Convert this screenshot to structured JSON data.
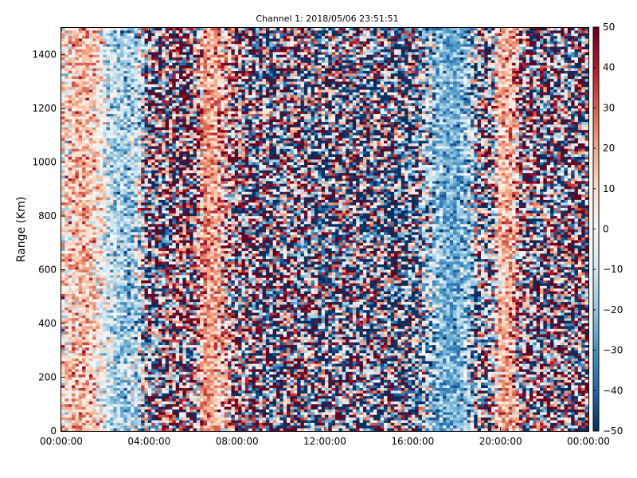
{
  "chart_data": {
    "type": "heatmap",
    "title": "Channel 1: 2018/05/06 23:51:51",
    "xlabel": "",
    "ylabel": "Range (Km)",
    "x_tick_labels": [
      "00:00:00",
      "04:00:00",
      "08:00:00",
      "12:00:00",
      "16:00:00",
      "20:00:00",
      "00:00:00"
    ],
    "x_range_hours": [
      0,
      24
    ],
    "y_ticks": [
      0,
      200,
      400,
      600,
      800,
      1000,
      1200,
      1400
    ],
    "ylim": [
      0,
      1500
    ],
    "colorbar": {
      "colormap": "RdBu_r",
      "vmin": -50,
      "vmax": 50,
      "ticks": [
        -50,
        -40,
        -30,
        -20,
        -10,
        0,
        10,
        20,
        30,
        40,
        50
      ],
      "tick_labels": [
        "−50",
        "−40",
        "−30",
        "−20",
        "−10",
        "0",
        "10",
        "20",
        "30",
        "40",
        "50"
      ],
      "colors": [
        "#053061",
        "#2166ac",
        "#4393c3",
        "#92c5de",
        "#d1e5f0",
        "#f7f7f7",
        "#fddbc7",
        "#f4a582",
        "#d6604d",
        "#b2182b",
        "#67001f"
      ]
    },
    "time_bins": 152,
    "range_bins": 150,
    "column_profile_hours": [
      0,
      0.5,
      1,
      1.5,
      2,
      2.5,
      3,
      3.5,
      4,
      4.5,
      5,
      5.5,
      6,
      6.5,
      7,
      7.5,
      8,
      8.5,
      9,
      9.5,
      10,
      10.5,
      11,
      11.5,
      12,
      12.5,
      13,
      13.5,
      14,
      14.5,
      15,
      15.5,
      16,
      16.5,
      17,
      17.5,
      18,
      18.5,
      19,
      19.5,
      20,
      20.5,
      21,
      21.5,
      22,
      22.5,
      23,
      23.5,
      24
    ],
    "column_profile_mean": [
      5,
      12,
      18,
      8,
      -5,
      -15,
      -20,
      -10,
      -5,
      0,
      5,
      10,
      0,
      25,
      20,
      15,
      5,
      0,
      -10,
      -15,
      -5,
      0,
      -10,
      -15,
      -20,
      -10,
      -5,
      -10,
      -15,
      -10,
      -20,
      -25,
      -20,
      -15,
      -20,
      -25,
      -25,
      -20,
      -10,
      -5,
      15,
      20,
      5,
      0,
      0,
      0,
      0,
      0,
      0
    ],
    "column_profile_spread": [
      15,
      12,
      10,
      12,
      12,
      10,
      12,
      15,
      40,
      45,
      45,
      45,
      45,
      10,
      10,
      25,
      40,
      45,
      45,
      45,
      45,
      45,
      45,
      45,
      45,
      45,
      45,
      45,
      45,
      45,
      45,
      45,
      45,
      30,
      15,
      8,
      8,
      15,
      40,
      40,
      10,
      10,
      40,
      45,
      45,
      45,
      45,
      45,
      45
    ]
  }
}
